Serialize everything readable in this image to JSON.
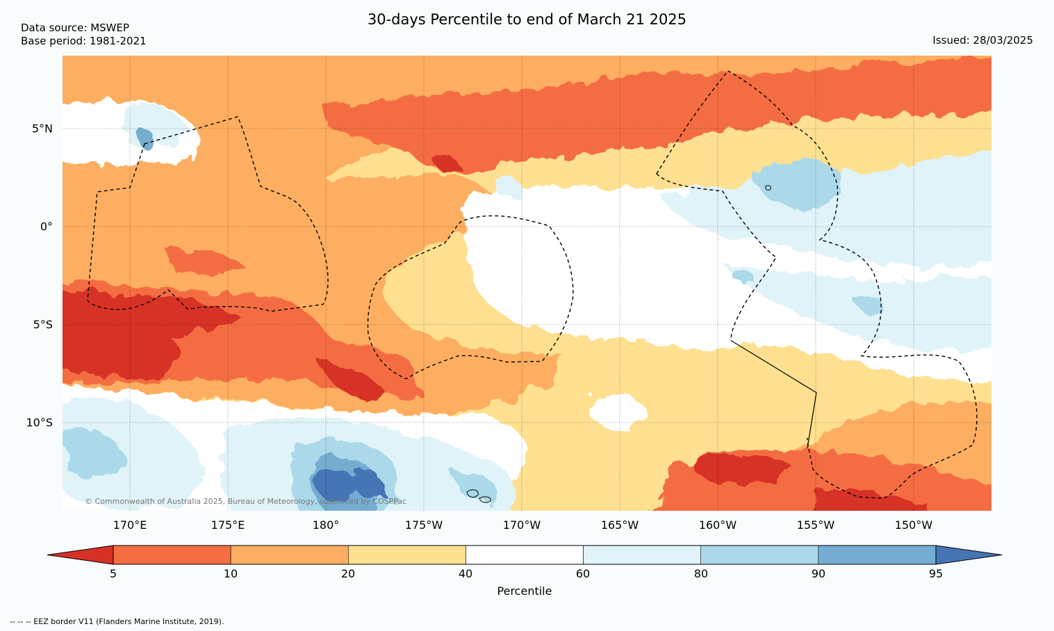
{
  "header": {
    "title": "30-days Percentile to end of March 21 2025",
    "data_source": "Data source: MSWEP",
    "base_period": "Base period: 1981-2021",
    "issued": "Issued: 28/03/2025"
  },
  "map": {
    "lat_labels": [
      "5°N",
      "0°",
      "5°S",
      "10°S"
    ],
    "lon_labels": [
      "170°E",
      "175°E",
      "180°",
      "175°W",
      "170°W",
      "165°W",
      "160°W",
      "155°W",
      "150°W"
    ],
    "copyright": "© Commonwealth of Australia 2025, Bureau of Meteorology, supported by COSPPac",
    "category_colors": {
      "lt5": "#d73027",
      "5-10": "#f46d43",
      "10-20": "#fdae61",
      "20-40": "#fee090",
      "40-60": "#ffffff",
      "60-80": "#e0f3f8",
      "80-90": "#abd9e9",
      "90-95": "#74add1",
      "gt95": "#4575b4"
    }
  },
  "colorbar": {
    "ticks": [
      "5",
      "10",
      "20",
      "40",
      "60",
      "80",
      "90",
      "95"
    ],
    "label": "Percentile",
    "colors": [
      "#d73027",
      "#f46d43",
      "#fdae61",
      "#fee090",
      "#ffffff",
      "#e0f3f8",
      "#abd9e9",
      "#74add1",
      "#4575b4"
    ]
  },
  "footer": {
    "eez_note": "--  --  -- EEZ border V11 (Flanders Marine Institute, 2019)."
  }
}
